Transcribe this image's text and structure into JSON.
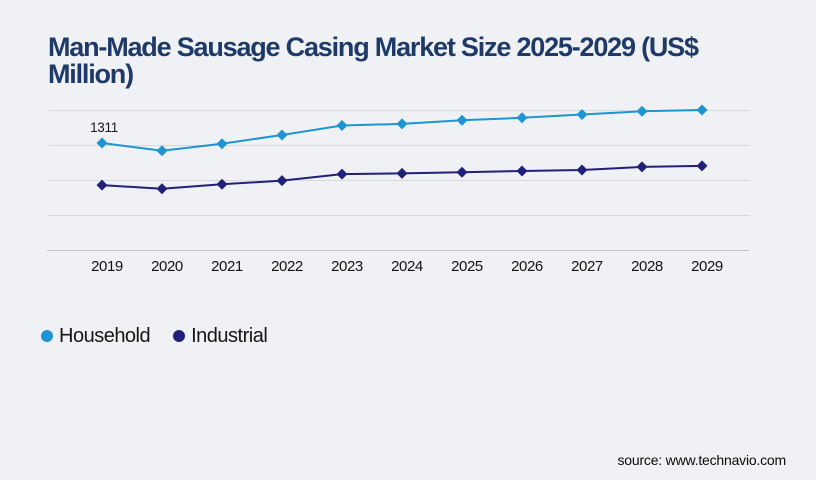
{
  "header": {
    "title": "Man-Made Sausage Casing Market Size 2025-2029 (US$ Million)",
    "title_lines": [
      "Man-Made Sausage Casing Market Size 2025-2029 (US$",
      "Million)"
    ]
  },
  "colors": {
    "background": "#f0f1f4",
    "title": "#1e3a69",
    "household": "#1e94d2",
    "industrial": "#21207a",
    "gridline": "#d9d9db",
    "axis_line": "#c3c3c8",
    "label_text": "#131313"
  },
  "chart_data": {
    "type": "line",
    "title": "Man-Made Sausage Casing Market Size 2025-2029 (US$ Million)",
    "categories": [
      "2019",
      "2020",
      "2021",
      "2022",
      "2023",
      "2024",
      "2025",
      "2026",
      "2027",
      "2028",
      "2029"
    ],
    "series": [
      {
        "name": "Household",
        "color": "#1e94d2",
        "values": [
          1311,
          1216,
          1302,
          1409,
          1525,
          1545,
          1590,
          1620,
          1660,
          1700,
          1715
        ]
      },
      {
        "name": "Industrial",
        "color": "#21207a",
        "values": [
          795,
          750,
          805,
          850,
          930,
          938,
          952,
          968,
          980,
          1018,
          1030
        ]
      }
    ],
    "data_labels": [
      {
        "series": "Household",
        "category": "2019",
        "text": "1311"
      }
    ],
    "xlabel": "",
    "ylabel": "",
    "ylim": [
      0,
      1840
    ],
    "y_axis_labels_visible": false,
    "grid": "horizontal",
    "legend_position": "bottom-left",
    "marker_shape": "diamond"
  },
  "footer": {
    "source": "source: www.technavio.com"
  }
}
